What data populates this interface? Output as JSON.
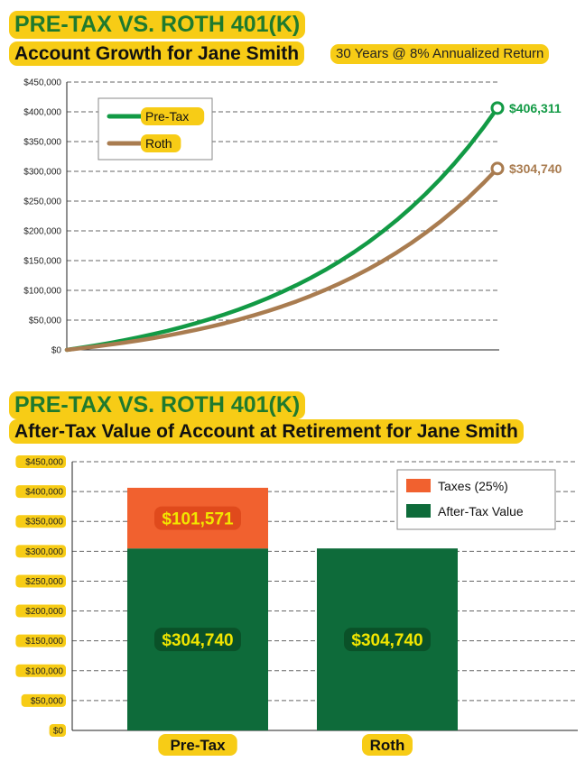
{
  "chart_data": [
    {
      "type": "line",
      "title": "PRE-TAX VS. ROTH 401(K)",
      "subtitle": "Account Growth for Jane Smith",
      "note": "30 Years @ 8% Annualized Return",
      "ylim": [
        0,
        450000
      ],
      "yticks": [
        "$0",
        "$50,000",
        "$100,000",
        "$150,000",
        "$200,000",
        "$250,000",
        "$300,000",
        "$350,000",
        "$400,000",
        "$450,000"
      ],
      "x": [
        0,
        1,
        2,
        3,
        4,
        5,
        6,
        7,
        8,
        9,
        10,
        11,
        12,
        13,
        14,
        15,
        16,
        17,
        18,
        19,
        20,
        21,
        22,
        23,
        24,
        25,
        26,
        27,
        28,
        29,
        30
      ],
      "xlim": [
        0,
        30
      ],
      "grid": true,
      "legend_position": "top-left",
      "series": [
        {
          "name": "Pre-Tax",
          "color": "#129a45",
          "end_label": "$406,311",
          "values": [
            0,
            3586,
            7458,
            11641,
            16158,
            21037,
            26306,
            31996,
            38142,
            44780,
            51948,
            59690,
            68051,
            77081,
            86834,
            97367,
            108742,
            121028,
            134297,
            148627,
            164104,
            180818,
            198870,
            218366,
            239422,
            262162,
            286721,
            313245,
            341892,
            372830,
            406311
          ]
        },
        {
          "name": "Roth",
          "color": "#a97c50",
          "end_label": "$304,740",
          "values": [
            0,
            2690,
            5594,
            8731,
            12119,
            15778,
            19730,
            23997,
            28607,
            33585,
            38961,
            44767,
            51039,
            57811,
            65126,
            73025,
            81557,
            90771,
            100723,
            111470,
            123078,
            135614,
            149152,
            163775,
            179567,
            196622,
            215041,
            234934,
            256419,
            279623,
            304740
          ]
        }
      ]
    },
    {
      "type": "bar",
      "stacked": true,
      "title": "PRE-TAX VS. ROTH 401(K)",
      "subtitle": "After-Tax Value of Account at Retirement for Jane Smith",
      "ylim": [
        0,
        450000
      ],
      "yticks": [
        "$0",
        "$50,000",
        "$100,000",
        "$150,000",
        "$200,000",
        "$250,000",
        "$300,000",
        "$350,000",
        "$400,000",
        "$450,000"
      ],
      "categories": [
        "Pre-Tax",
        "Roth"
      ],
      "grid": true,
      "legend_position": "top-right",
      "series": [
        {
          "name": "After-Tax Value",
          "color": "#0e6b3a",
          "values": [
            304740,
            304740
          ],
          "labels": [
            "$304,740",
            "$304,740"
          ]
        },
        {
          "name": "Taxes (25%)",
          "color": "#f1612f",
          "values": [
            101571,
            0
          ],
          "labels": [
            "$101,571",
            ""
          ]
        }
      ]
    }
  ],
  "colors": {
    "highlight": "#f7cc16",
    "title_green": "#1f7a2e",
    "label_yellow": "#f2e600",
    "grid": "#666666"
  }
}
